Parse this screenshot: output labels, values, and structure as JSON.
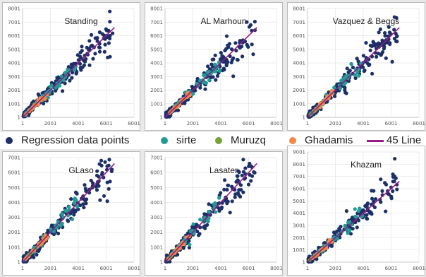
{
  "colors": {
    "regression": "#1c2f66",
    "sirte": "#1f9c93",
    "muruzq": "#74a338",
    "ghadamis": "#ee8a45",
    "line45": "#9a1a88"
  },
  "legend": {
    "regression": "Regression data points",
    "sirte": "sirte",
    "muruzq": "Muruzq",
    "ghadamis": "Ghadamis",
    "line45": "45 Line"
  },
  "chart_data": [
    {
      "type": "scatter",
      "title": "Standing",
      "xlim": [
        1,
        8001
      ],
      "ylim": [
        1,
        8001
      ],
      "xticks": [
        "1",
        "2001",
        "4001",
        "6001",
        "8001"
      ],
      "yticks": [
        "1",
        "1001",
        "2001",
        "3001",
        "4001",
        "5001",
        "6001",
        "7001",
        "8001"
      ],
      "line45": [
        [
          1,
          1
        ],
        [
          6600,
          6600
        ]
      ]
    },
    {
      "type": "scatter",
      "title": "AL Marhoun",
      "xlim": [
        1,
        8001
      ],
      "ylim": [
        1,
        8001
      ],
      "xticks": [
        "1",
        "2001",
        "4001",
        "6001",
        "8001"
      ],
      "yticks": [
        "1",
        "1001",
        "2001",
        "3001",
        "4001",
        "5001",
        "6001",
        "7001",
        "8001"
      ],
      "line45": [
        [
          1,
          1
        ],
        [
          6600,
          6600
        ]
      ]
    },
    {
      "type": "scatter",
      "title": "Vazquez & Beggs",
      "xlim": [
        1,
        8001
      ],
      "ylim": [
        1,
        8001
      ],
      "xticks": [
        "1",
        "2001",
        "4001",
        "6001",
        "8001"
      ],
      "yticks": [
        "1",
        "1001",
        "2001",
        "3001",
        "4001",
        "5001",
        "6001",
        "7001",
        "8001"
      ],
      "line45": [
        [
          1,
          1
        ],
        [
          6600,
          6600
        ]
      ]
    },
    {
      "type": "scatter",
      "title": "GLaso",
      "xlim": [
        1,
        8001
      ],
      "ylim": [
        1,
        7001
      ],
      "xticks": [
        "1",
        "2001",
        "4001",
        "6001",
        "8001"
      ],
      "yticks": [
        "1",
        "1001",
        "2001",
        "3001",
        "4001",
        "5001",
        "6001",
        "7001"
      ],
      "line45": [
        [
          1,
          1
        ],
        [
          6600,
          6600
        ]
      ]
    },
    {
      "type": "scatter",
      "title": "Lasater",
      "xlim": [
        1,
        8001
      ],
      "ylim": [
        1,
        7001
      ],
      "xticks": [
        "1",
        "2001",
        "4001",
        "6001",
        "8001"
      ],
      "yticks": [
        "1",
        "1001",
        "2001",
        "3001",
        "4001",
        "5001",
        "6001",
        "7001"
      ],
      "line45": [
        [
          1,
          1
        ],
        [
          6600,
          6600
        ]
      ]
    },
    {
      "type": "scatter",
      "title": "Khazam",
      "xlim": [
        1,
        8001
      ],
      "ylim": [
        1,
        9001
      ],
      "xticks": [
        "1",
        "2001",
        "4001",
        "6001",
        "8001"
      ],
      "yticks": [
        "1",
        "1001",
        "2001",
        "3001",
        "4001",
        "5001",
        "6001",
        "7001",
        "8001",
        "9001"
      ],
      "line45": [
        [
          1,
          1
        ],
        [
          6600,
          6600
        ]
      ]
    }
  ]
}
